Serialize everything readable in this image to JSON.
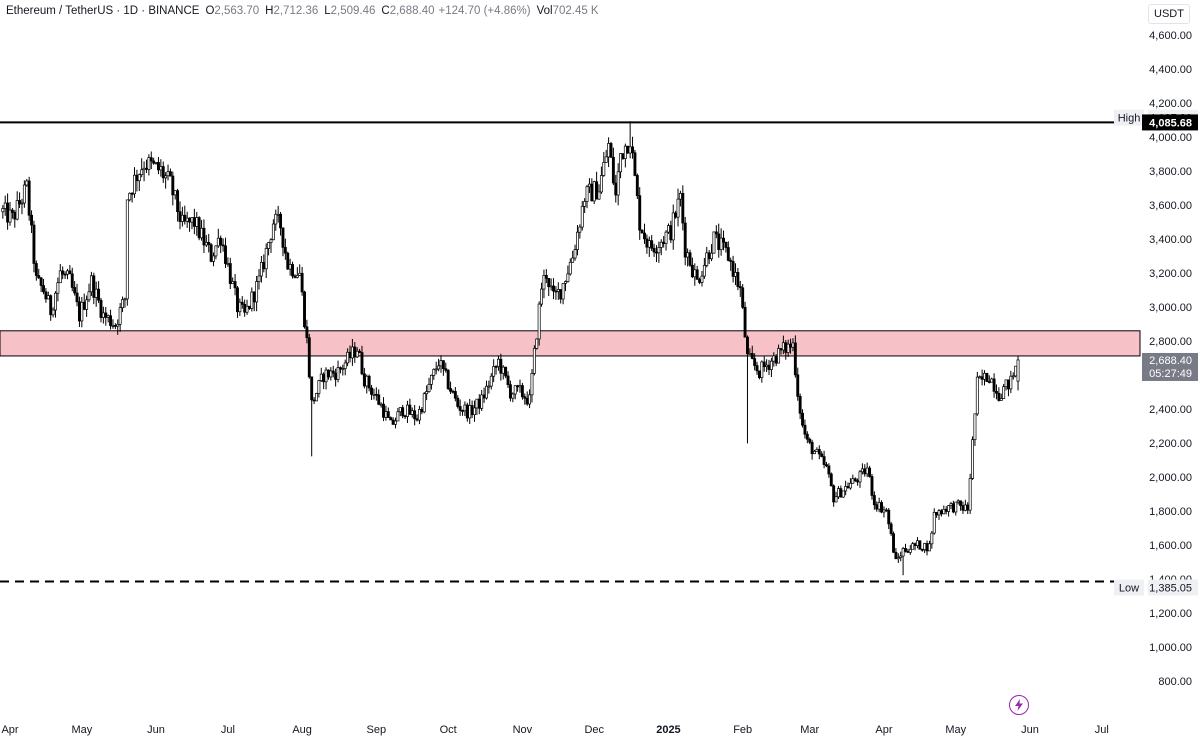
{
  "header": {
    "symbol": "Ethereum / TetherUS · 1D · BINANCE",
    "open_label": "O",
    "open": "2,563.70",
    "high_label": "H",
    "high": "2,712.36",
    "low_label": "L",
    "low": "2,509.46",
    "close_label": "C",
    "close": "2,688.40",
    "change": "+124.70 (+4.86%)",
    "vol_label": "Vol",
    "volume": "702.45 K"
  },
  "currency": "USDT",
  "flash_icon": "lightning-icon",
  "chart_data": {
    "type": "candlestick",
    "symbol": "Ethereum / TetherUS",
    "interval": "1D",
    "exchange": "BINANCE",
    "ylim": [
      700,
      4700
    ],
    "y_ticks": [
      800,
      1000,
      1200,
      1400,
      1600,
      1800,
      2000,
      2200,
      2400,
      2600,
      2800,
      3000,
      3200,
      3400,
      3600,
      3800,
      4000,
      4200,
      4400,
      4600
    ],
    "y_tick_labels": [
      "800.00",
      "1,000.00",
      "1,200.00",
      "1,400.00",
      "1,600.00",
      "1,800.00",
      "2,000.00",
      "2,200.00",
      "2,400.00",
      "2,600.00",
      "2,800.00",
      "3,000.00",
      "3,200.00",
      "3,400.00",
      "3,600.00",
      "3,800.00",
      "4,000.00",
      "4,200.00",
      "4,400.00",
      "4,600.00"
    ],
    "x_labels": [
      "Apr",
      "May",
      "Jun",
      "Jul",
      "Aug",
      "Sep",
      "Oct",
      "Nov",
      "Dec",
      "2025",
      "Feb",
      "Mar",
      "Apr",
      "May",
      "Jun",
      "Jul"
    ],
    "x_label_dates": [
      "2024-04-01",
      "2024-05-01",
      "2024-06-01",
      "2024-07-01",
      "2024-08-01",
      "2024-09-01",
      "2024-10-01",
      "2024-11-01",
      "2024-12-01",
      "2025-01-01",
      "2025-02-01",
      "2025-03-01",
      "2025-04-01",
      "2025-05-01",
      "2025-06-01",
      "2025-07-01"
    ],
    "x_range": [
      "2024-03-29",
      "2025-07-25"
    ],
    "grid": false,
    "candle_up_color": "#ffffff",
    "candle_down_color": "#000000",
    "wick_color": "#000000",
    "zone": {
      "from": 2712,
      "to": 2860,
      "color": "#f7c1c8"
    },
    "resistance_line": {
      "value": 4085.68,
      "label": "4,085.68",
      "style": "solid"
    },
    "support_line": {
      "value": 1385.05,
      "style": "dashed"
    },
    "high_marker": {
      "label": "High",
      "value": "4,107.80",
      "price": 4107.8
    },
    "low_marker": {
      "label": "Low",
      "value": "1,385.05",
      "price": 1385.05
    },
    "last_price": {
      "value": 2688.4,
      "label": "2,688.40",
      "countdown": "05:27:49",
      "color": "#787b86"
    },
    "anchors": [
      [
        "2024-03-29",
        3560
      ],
      [
        "2024-04-02",
        3520
      ],
      [
        "2024-04-08",
        3700
      ],
      [
        "2024-04-12",
        3150
      ],
      [
        "2024-04-15",
        3100
      ],
      [
        "2024-04-18",
        2980
      ],
      [
        "2024-04-22",
        3200
      ],
      [
        "2024-04-26",
        3150
      ],
      [
        "2024-04-30",
        2950
      ],
      [
        "2024-05-05",
        3150
      ],
      [
        "2024-05-10",
        2950
      ],
      [
        "2024-05-15",
        2900
      ],
      [
        "2024-05-19",
        3050
      ],
      [
        "2024-05-20",
        3650
      ],
      [
        "2024-05-24",
        3780
      ],
      [
        "2024-05-27",
        3850
      ],
      [
        "2024-06-03",
        3800
      ],
      [
        "2024-06-07",
        3720
      ],
      [
        "2024-06-12",
        3480
      ],
      [
        "2024-06-17",
        3500
      ],
      [
        "2024-06-24",
        3300
      ],
      [
        "2024-06-28",
        3420
      ],
      [
        "2024-07-05",
        3000
      ],
      [
        "2024-07-08",
        2950
      ],
      [
        "2024-07-14",
        3150
      ],
      [
        "2024-07-20",
        3500
      ],
      [
        "2024-07-23",
        3480
      ],
      [
        "2024-07-26",
        3250
      ],
      [
        "2024-07-31",
        3200
      ],
      [
        "2024-08-03",
        2800
      ],
      [
        "2024-08-05",
        2430
      ],
      [
        "2024-08-10",
        2600
      ],
      [
        "2024-08-16",
        2620
      ],
      [
        "2024-08-24",
        2760
      ],
      [
        "2024-08-27",
        2580
      ],
      [
        "2024-09-03",
        2420
      ],
      [
        "2024-09-07",
        2300
      ],
      [
        "2024-09-12",
        2400
      ],
      [
        "2024-09-18",
        2350
      ],
      [
        "2024-09-27",
        2680
      ],
      [
        "2024-10-01",
        2550
      ],
      [
        "2024-10-05",
        2420
      ],
      [
        "2024-10-10",
        2380
      ],
      [
        "2024-10-15",
        2450
      ],
      [
        "2024-10-22",
        2680
      ],
      [
        "2024-10-27",
        2500
      ],
      [
        "2024-10-31",
        2500
      ],
      [
        "2024-11-04",
        2450
      ],
      [
        "2024-11-06",
        2720
      ],
      [
        "2024-11-09",
        3120
      ],
      [
        "2024-11-11",
        3200
      ],
      [
        "2024-11-14",
        3050
      ],
      [
        "2024-11-17",
        3100
      ],
      [
        "2024-11-22",
        3300
      ],
      [
        "2024-11-27",
        3650
      ],
      [
        "2024-12-03",
        3700
      ],
      [
        "2024-12-07",
        3950
      ],
      [
        "2024-12-10",
        3650
      ],
      [
        "2024-12-12",
        3900
      ],
      [
        "2024-12-16",
        4000
      ],
      [
        "2024-12-20",
        3500
      ],
      [
        "2024-12-24",
        3350
      ],
      [
        "2024-12-28",
        3380
      ],
      [
        "2025-01-02",
        3450
      ],
      [
        "2025-01-06",
        3650
      ],
      [
        "2025-01-08",
        3350
      ],
      [
        "2025-01-13",
        3150
      ],
      [
        "2025-01-17",
        3300
      ],
      [
        "2025-01-20",
        3400
      ],
      [
        "2025-01-26",
        3300
      ],
      [
        "2025-01-31",
        3100
      ],
      [
        "2025-02-03",
        2700
      ],
      [
        "2025-02-08",
        2620
      ],
      [
        "2025-02-14",
        2700
      ],
      [
        "2025-02-18",
        2750
      ],
      [
        "2025-02-22",
        2780
      ],
      [
        "2025-02-24",
        2500
      ],
      [
        "2025-02-26",
        2300
      ],
      [
        "2025-02-28",
        2200
      ],
      [
        "2025-03-03",
        2150
      ],
      [
        "2025-03-08",
        2050
      ],
      [
        "2025-03-11",
        1880
      ],
      [
        "2025-03-17",
        1950
      ],
      [
        "2025-03-22",
        2000
      ],
      [
        "2025-03-25",
        2050
      ],
      [
        "2025-03-28",
        1850
      ],
      [
        "2025-04-02",
        1800
      ],
      [
        "2025-04-06",
        1500
      ],
      [
        "2025-04-09",
        1570
      ],
      [
        "2025-04-15",
        1600
      ],
      [
        "2025-04-20",
        1590
      ],
      [
        "2025-04-22",
        1780
      ],
      [
        "2025-04-27",
        1820
      ],
      [
        "2025-05-02",
        1830
      ],
      [
        "2025-05-06",
        1810
      ],
      [
        "2025-05-08",
        2200
      ],
      [
        "2025-05-10",
        2550
      ],
      [
        "2025-05-15",
        2600
      ],
      [
        "2025-05-19",
        2490
      ],
      [
        "2025-05-24",
        2560
      ],
      [
        "2025-05-27",
        2688.4
      ]
    ]
  }
}
